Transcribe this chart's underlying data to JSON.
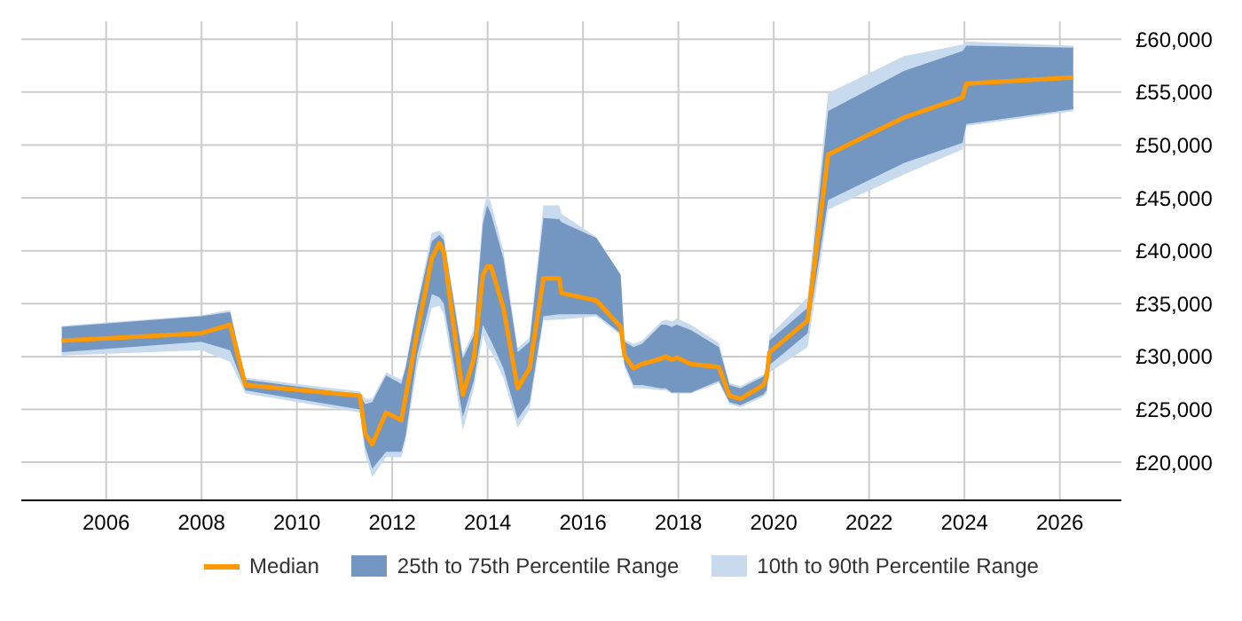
{
  "chart_data": {
    "type": "line",
    "x": [
      2005.07,
      2007.99,
      2008.6,
      2008.92,
      2011.32,
      2011.43,
      2011.58,
      2011.87,
      2012.19,
      2012.28,
      2012.52,
      2012.83,
      2012.99,
      2013.08,
      2013.48,
      2013.71,
      2013.9,
      2013.99,
      2014.07,
      2014.33,
      2014.63,
      2014.88,
      2015.17,
      2015.5,
      2015.55,
      2016.28,
      2016.79,
      2016.87,
      2017.06,
      2017.24,
      2017.64,
      2017.74,
      2017.86,
      2017.97,
      2018.26,
      2018.85,
      2019.07,
      2019.3,
      2019.78,
      2019.85,
      2019.91,
      2020.71,
      2021.14,
      2022.73,
      2023.96,
      2024.04,
      2026.28
    ],
    "series": [
      {
        "name": "Median",
        "type": "line",
        "color": "#ff9900",
        "values": [
          31500,
          32200,
          33000,
          27300,
          26300,
          22700,
          21700,
          24700,
          24000,
          26200,
          32200,
          39300,
          40700,
          39900,
          26400,
          29800,
          37700,
          38500,
          38500,
          34600,
          27000,
          28900,
          37400,
          37400,
          36000,
          35300,
          32800,
          30100,
          28900,
          29300,
          29800,
          30000,
          29700,
          29900,
          29300,
          29000,
          26300,
          26000,
          27300,
          28000,
          30400,
          33400,
          49100,
          52600,
          54500,
          55800,
          56400
        ]
      },
      {
        "name": "25th to 75th Percentile Range",
        "type": "line",
        "color": "#7397c0",
        "upper": [
          32800,
          33800,
          34200,
          27800,
          26400,
          25500,
          25700,
          28200,
          27400,
          28900,
          34600,
          40900,
          41500,
          41000,
          29800,
          32000,
          42500,
          44300,
          43500,
          39300,
          30400,
          31400,
          43100,
          43000,
          42700,
          41200,
          37700,
          31400,
          30900,
          31200,
          33000,
          33000,
          32800,
          33000,
          32500,
          30900,
          27300,
          27000,
          28100,
          28600,
          31500,
          34600,
          53200,
          57000,
          58900,
          59400,
          59200
        ],
        "lower": [
          30400,
          31400,
          30600,
          26800,
          25000,
          21500,
          19400,
          21000,
          21000,
          22500,
          30100,
          35900,
          35600,
          35000,
          24300,
          27700,
          33000,
          32200,
          31500,
          28900,
          24100,
          25700,
          33800,
          34000,
          34000,
          34000,
          32200,
          29300,
          27300,
          27300,
          27000,
          27000,
          26600,
          26600,
          26600,
          27700,
          25700,
          25400,
          26400,
          26800,
          29200,
          32200,
          44800,
          48300,
          50200,
          52000,
          53400
        ],
        "values": [
          null,
          null,
          null,
          null,
          null,
          null,
          null,
          null,
          null,
          null,
          null,
          null,
          null,
          null,
          null,
          null,
          null,
          null,
          null,
          null,
          null,
          null,
          null,
          null,
          null,
          null,
          null,
          null,
          null,
          null,
          null,
          null,
          null,
          null,
          null,
          null,
          null,
          null,
          null,
          null,
          null,
          null,
          null,
          null,
          null,
          null,
          null
        ]
      },
      {
        "name": "10th to 90th Percentile Range",
        "type": "line",
        "color": "#c8daed",
        "upper": [
          32900,
          33900,
          34400,
          28000,
          26700,
          26000,
          26000,
          28500,
          27800,
          29200,
          35000,
          41700,
          41900,
          41500,
          30200,
          32500,
          43500,
          45400,
          44500,
          40000,
          30800,
          31800,
          44300,
          44300,
          43500,
          41300,
          37800,
          31600,
          31200,
          31500,
          33300,
          33500,
          33300,
          33600,
          33000,
          31300,
          27500,
          27200,
          28300,
          29000,
          32000,
          35600,
          54900,
          58400,
          59500,
          59800,
          59400
        ],
        "lower": [
          30100,
          30600,
          29500,
          26500,
          24700,
          20800,
          18600,
          20500,
          20500,
          22000,
          29000,
          34600,
          34800,
          34000,
          23000,
          27000,
          32000,
          30900,
          30500,
          28000,
          23300,
          25000,
          33400,
          33500,
          33500,
          33800,
          32000,
          29000,
          27000,
          27000,
          26800,
          26800,
          26500,
          26500,
          26500,
          27500,
          25500,
          25200,
          26200,
          26500,
          28500,
          30900,
          43900,
          47200,
          49600,
          51800,
          53200
        ],
        "values": [
          null,
          null,
          null,
          null,
          null,
          null,
          null,
          null,
          null,
          null,
          null,
          null,
          null,
          null,
          null,
          null,
          null,
          null,
          null,
          null,
          null,
          null,
          null,
          null,
          null,
          null,
          null,
          null,
          null,
          null,
          null,
          null,
          null,
          null,
          null,
          null,
          null,
          null,
          null,
          null,
          null,
          null,
          null,
          null,
          null,
          null,
          null
        ]
      }
    ],
    "xlim": [
      2004.22,
      2027.29
    ],
    "xticks": [
      2006,
      2008,
      2010,
      2012,
      2014,
      2016,
      2018,
      2020,
      2022,
      2024,
      2026
    ],
    "ylim": [
      16400,
      61700
    ],
    "yticks": [
      {
        "value": 20000,
        "label": "£20,000"
      },
      {
        "value": 25000,
        "label": "£25,000"
      },
      {
        "value": 30000,
        "label": "£30,000"
      },
      {
        "value": 35000,
        "label": "£35,000"
      },
      {
        "value": 40000,
        "label": "£40,000"
      },
      {
        "value": 45000,
        "label": "£45,000"
      },
      {
        "value": 50000,
        "label": "£50,000"
      },
      {
        "value": 55000,
        "label": "£55,000"
      },
      {
        "value": 60000,
        "label": "£60,000"
      }
    ],
    "grid": true,
    "legend": "bottom",
    "marker": "none",
    "line_style": "solid"
  }
}
